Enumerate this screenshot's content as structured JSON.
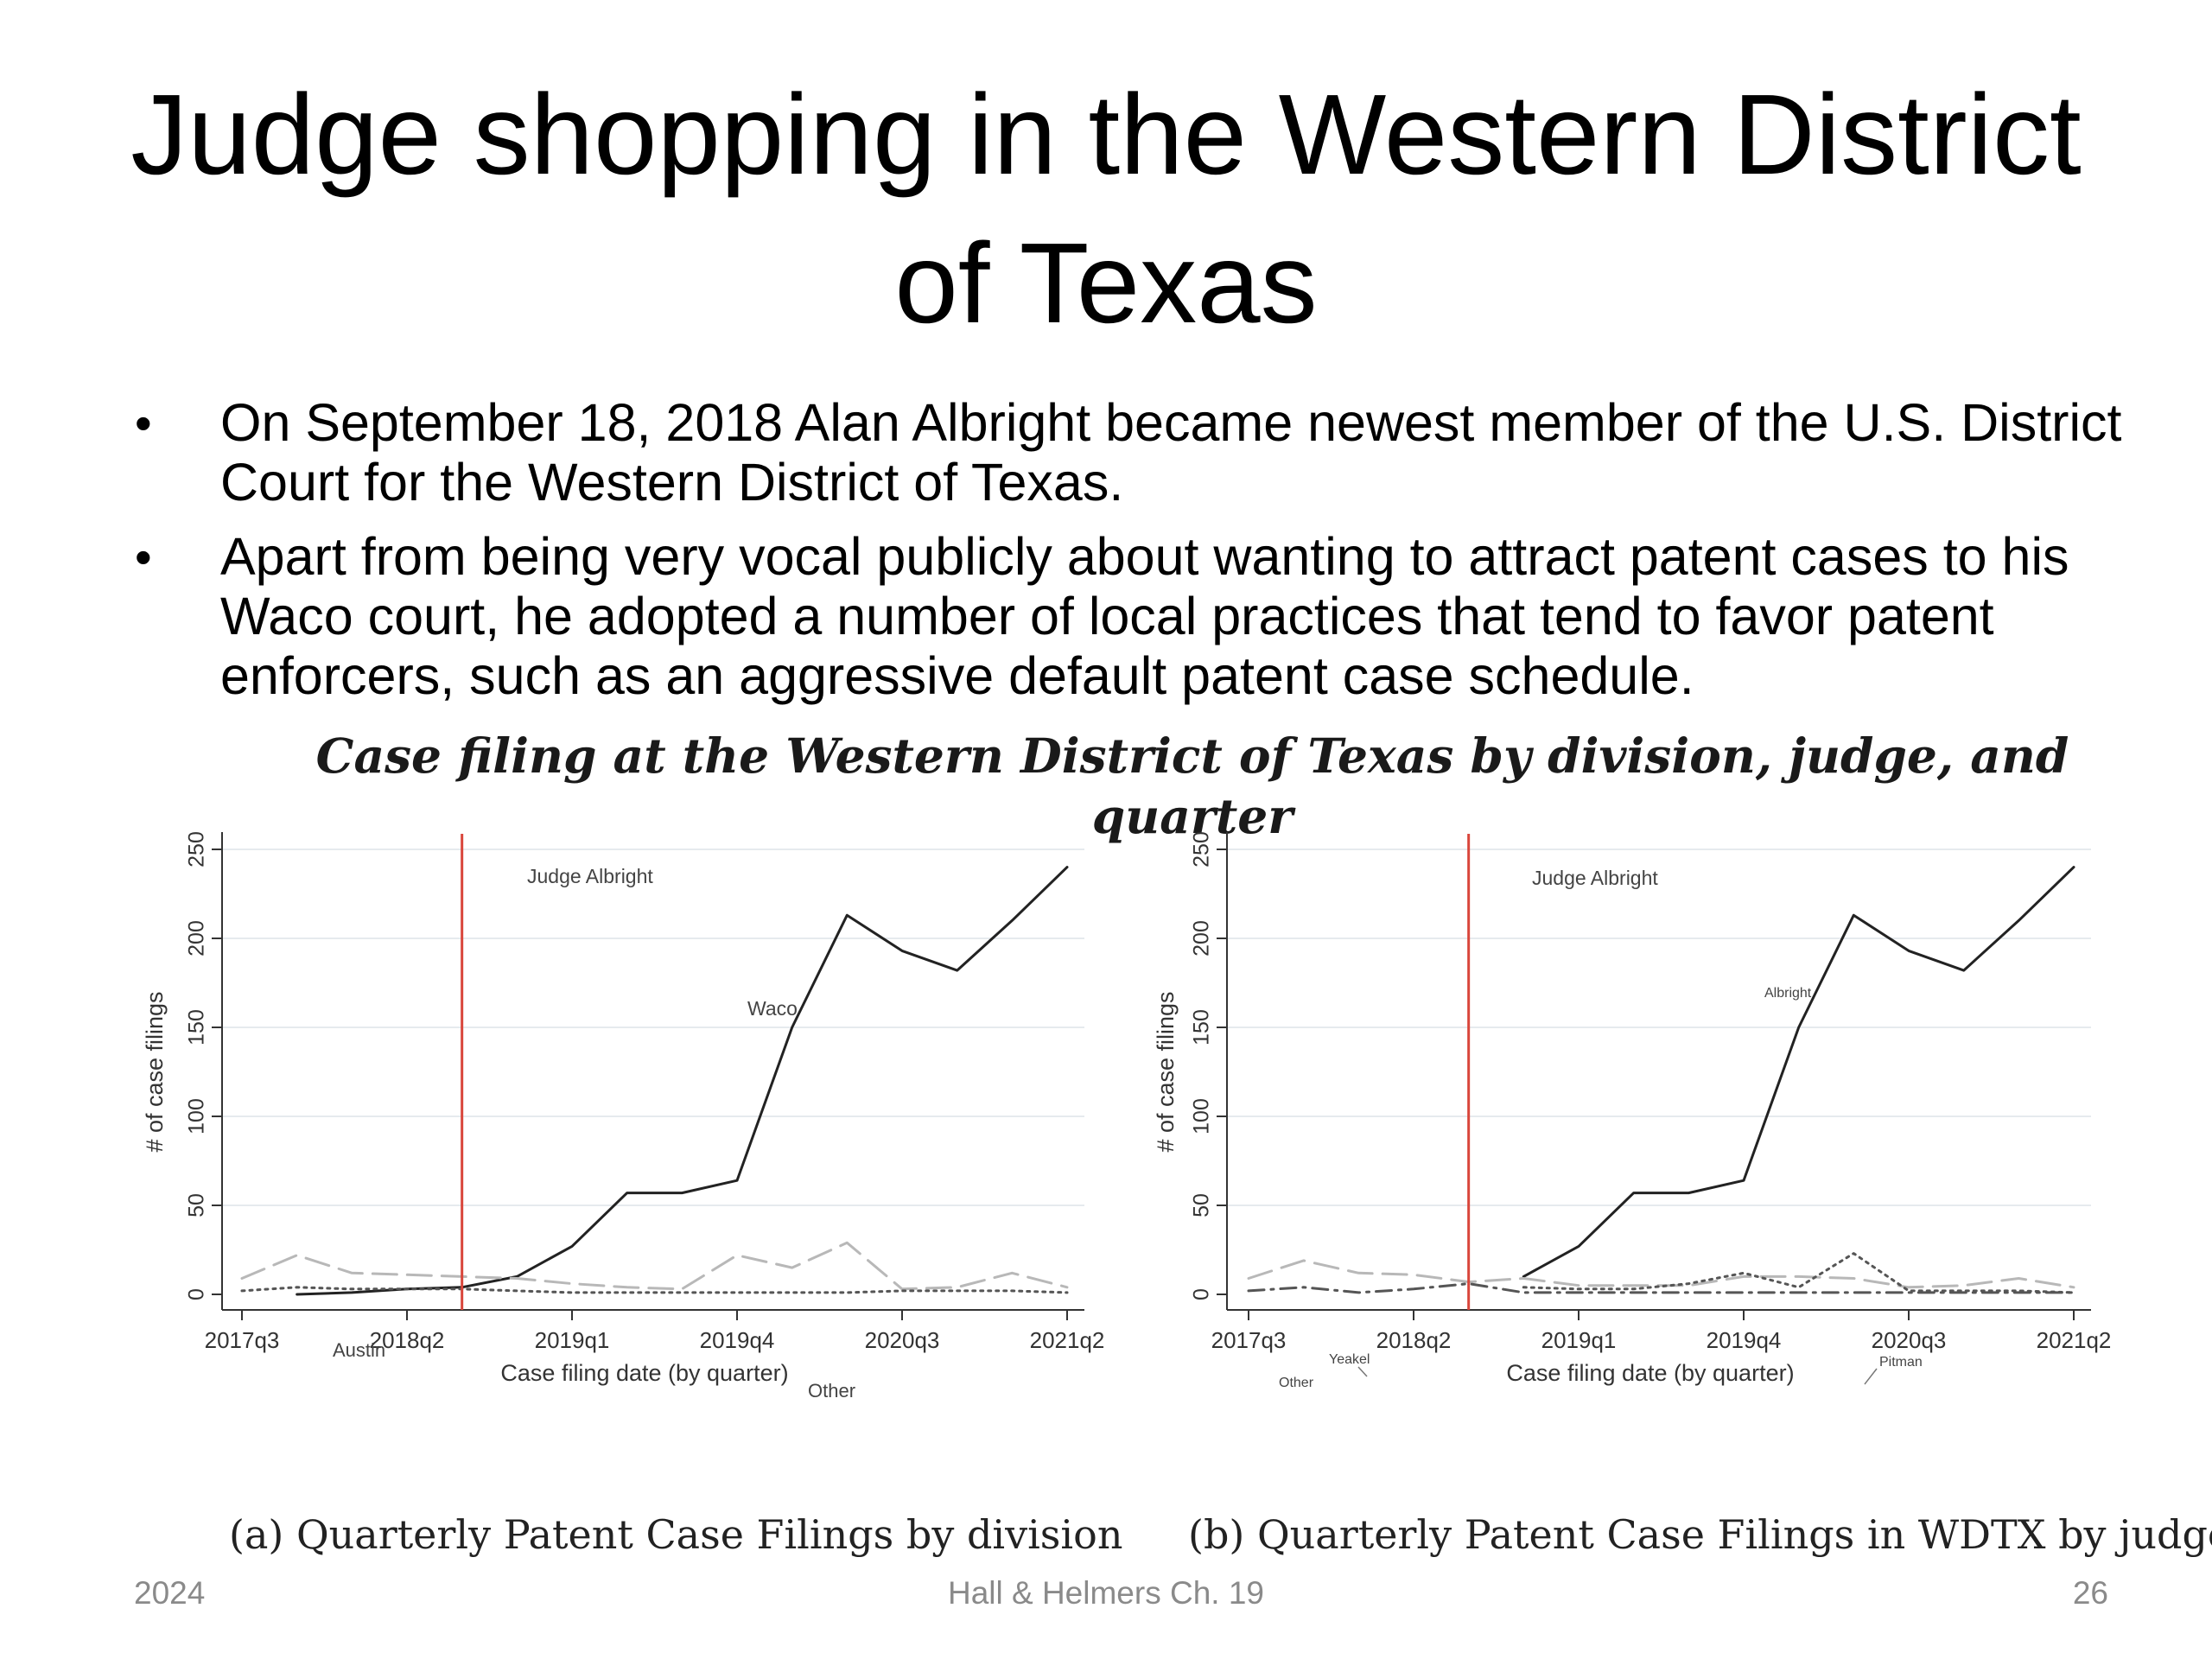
{
  "slide": {
    "title": "Judge shopping in the Western District of Texas",
    "bullets": [
      "On September 18, 2018 Alan Albright became newest member of the U.S. District Court for the Western District of Texas.",
      "Apart from being very vocal publicly about wanting to attract patent cases to his Waco court, he adopted a number of local practices that tend to favor patent enforcers, such as an aggressive default patent case schedule."
    ],
    "bullet_symbol": "•",
    "figure_caption": "Case filing at the Western District of Texas by division, judge, and quarter",
    "footer": {
      "left": "2024",
      "center": "Hall & Helmers Ch. 19",
      "right": "26"
    }
  },
  "chart_data": [
    {
      "type": "line",
      "caption": "(a)  Quarterly Patent Case Filings by division",
      "xlabel": "Case filing date (by quarter)",
      "ylabel": "# of case filings",
      "x": [
        "2017q3",
        "2017q4",
        "2018q1",
        "2018q2",
        "2018q3",
        "2018q4",
        "2019q1",
        "2019q2",
        "2019q3",
        "2019q4",
        "2020q1",
        "2020q2",
        "2020q3",
        "2020q4",
        "2021q1",
        "2021q2"
      ],
      "xticks": [
        "2017q3",
        "2018q2",
        "2019q1",
        "2019q4",
        "2020q3",
        "2021q2"
      ],
      "ylim": [
        0,
        250
      ],
      "yticks": [
        0,
        50,
        100,
        150,
        200,
        250
      ],
      "grid": true,
      "vline": {
        "x": "2018q3",
        "label": "Judge Albright",
        "color": "#d9463b"
      },
      "series": [
        {
          "name": "Waco",
          "style": "solid",
          "color": "#222222",
          "values": [
            null,
            0,
            1,
            3,
            4,
            10,
            27,
            57,
            57,
            64,
            150,
            213,
            193,
            182,
            210,
            240
          ]
        },
        {
          "name": "Austin",
          "style": "longdash",
          "color": "#b8b8b8",
          "values": [
            9,
            22,
            12,
            11,
            10,
            9,
            6,
            4,
            3,
            22,
            15,
            29,
            3,
            4,
            12,
            4
          ]
        },
        {
          "name": "Other",
          "style": "dotted",
          "color": "#555555",
          "values": [
            2,
            4,
            3,
            3,
            3,
            2,
            1,
            1,
            1,
            1,
            1,
            1,
            2,
            2,
            2,
            1
          ]
        }
      ],
      "labels": [
        {
          "text": "Judge Albright",
          "series": null
        },
        {
          "text": "Waco",
          "series": "Waco"
        },
        {
          "text": "Austin",
          "series": "Austin"
        },
        {
          "text": "Other",
          "series": "Other"
        }
      ]
    },
    {
      "type": "line",
      "caption": "(b) Quarterly Patent Case Filings in WDTX by judge",
      "xlabel": "Case filing date (by quarter)",
      "ylabel": "# of case filings",
      "x": [
        "2017q3",
        "2017q4",
        "2018q1",
        "2018q2",
        "2018q3",
        "2018q4",
        "2019q1",
        "2019q2",
        "2019q3",
        "2019q4",
        "2020q1",
        "2020q2",
        "2020q3",
        "2020q4",
        "2021q1",
        "2021q2"
      ],
      "xticks": [
        "2017q3",
        "2018q2",
        "2019q1",
        "2019q4",
        "2020q3",
        "2021q2"
      ],
      "ylim": [
        0,
        250
      ],
      "yticks": [
        0,
        50,
        100,
        150,
        200,
        250
      ],
      "grid": true,
      "vline": {
        "x": "2018q3",
        "label": "Judge Albright",
        "color": "#d9463b"
      },
      "series": [
        {
          "name": "Albright",
          "style": "solid",
          "color": "#222222",
          "values": [
            null,
            null,
            null,
            null,
            null,
            10,
            27,
            57,
            57,
            64,
            150,
            213,
            193,
            182,
            210,
            240
          ]
        },
        {
          "name": "Yeakel",
          "style": "longdash",
          "color": "#b8b8b8",
          "values": [
            9,
            19,
            12,
            11,
            7,
            9,
            5,
            5,
            5,
            10,
            10,
            9,
            4,
            5,
            9,
            4
          ]
        },
        {
          "name": "Pitman",
          "style": "dotted",
          "color": "#555555",
          "values": [
            null,
            null,
            null,
            null,
            null,
            4,
            3,
            3,
            6,
            12,
            4,
            23,
            2,
            2,
            2,
            1
          ]
        },
        {
          "name": "Other",
          "style": "dashdot",
          "color": "#555555",
          "values": [
            2,
            4,
            1,
            3,
            6,
            1,
            1,
            1,
            1,
            1,
            1,
            1,
            1,
            1,
            1,
            1
          ]
        }
      ],
      "labels": [
        {
          "text": "Judge Albright",
          "series": null
        },
        {
          "text": "Albright",
          "series": "Albright"
        },
        {
          "text": "Yeakel",
          "series": "Yeakel"
        },
        {
          "text": "Pitman",
          "series": "Pitman"
        },
        {
          "text": "Other",
          "series": "Other"
        }
      ]
    }
  ]
}
